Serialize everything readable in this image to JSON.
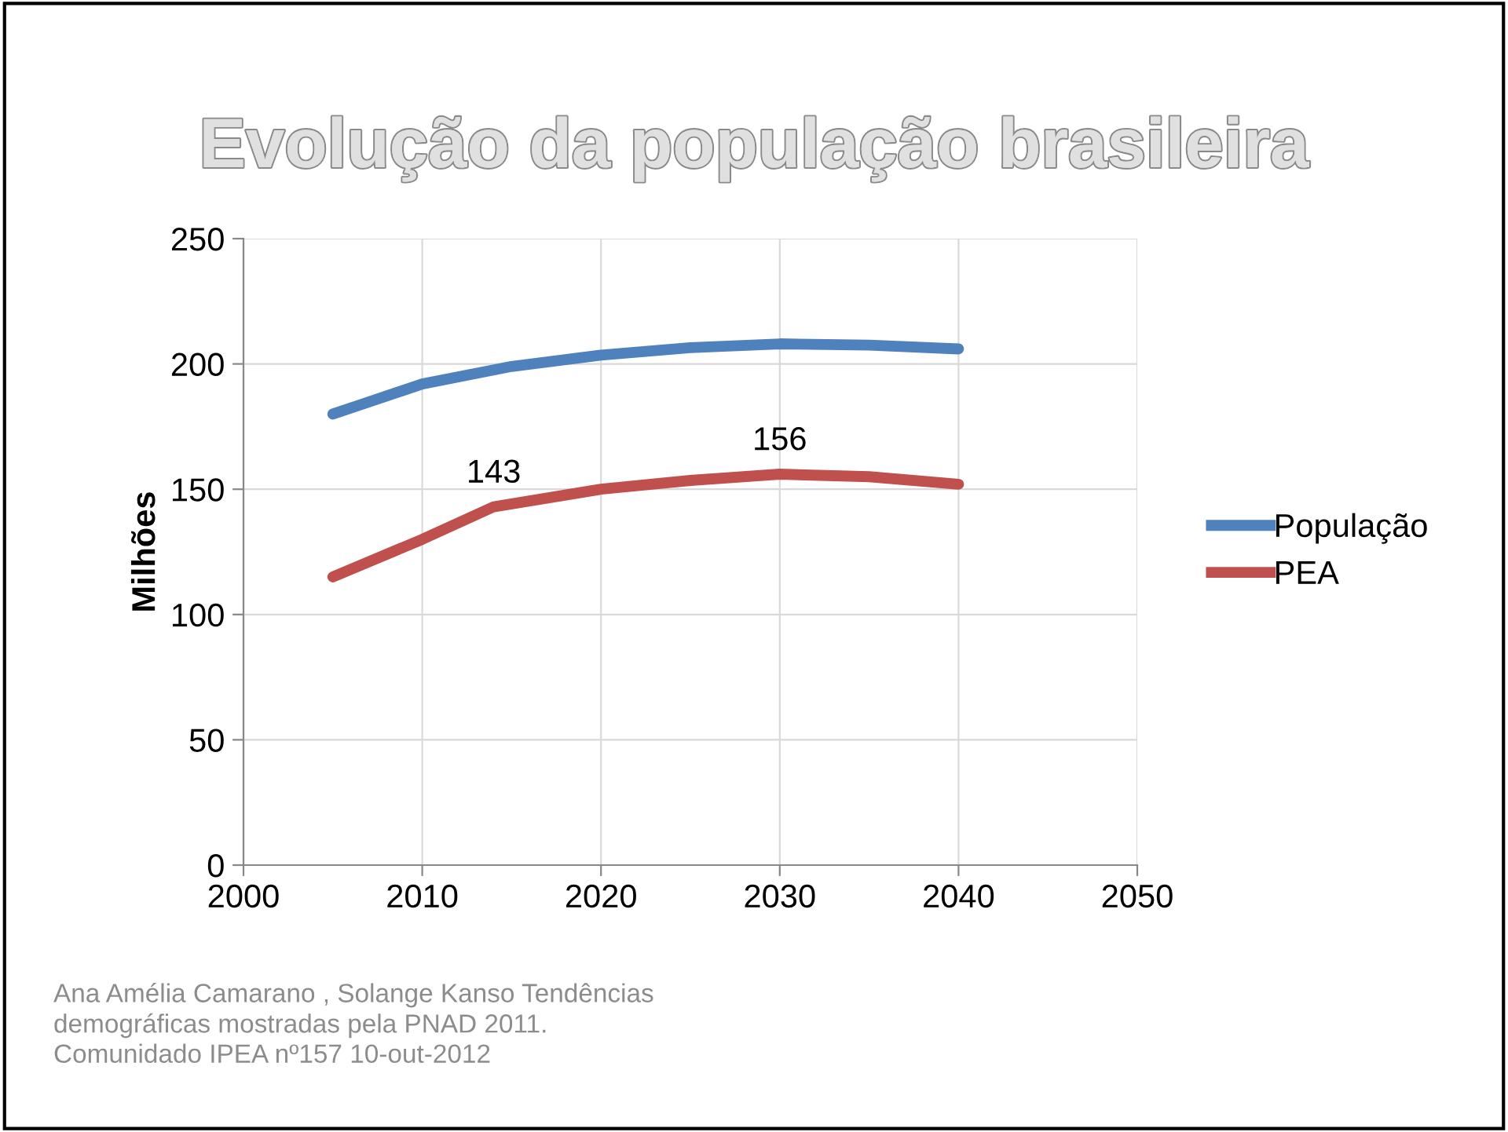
{
  "chart_data": {
    "type": "line",
    "title": "Evolução da população brasileira",
    "ylabel": "Milhões",
    "xlim": [
      2000,
      2050
    ],
    "xticks": [
      2000,
      2010,
      2020,
      2030,
      2040,
      2050
    ],
    "ylim": [
      0,
      250
    ],
    "yticks": [
      0,
      50,
      100,
      150,
      200,
      250
    ],
    "grid": true,
    "legend": "right",
    "marker": "none",
    "line_style": "solid",
    "series": [
      {
        "name": "População",
        "color": "#4f81bd",
        "x": [
          2005,
          2010,
          2015,
          2020,
          2025,
          2030,
          2035,
          2040
        ],
        "values": [
          180,
          192,
          199,
          203.5,
          206.5,
          208,
          207.5,
          206
        ]
      },
      {
        "name": "PEA",
        "color": "#c0504d",
        "x": [
          2005,
          2010,
          2014,
          2020,
          2025,
          2030,
          2035,
          2040
        ],
        "values": [
          115,
          130,
          143,
          150,
          153.5,
          156,
          155,
          152
        ]
      }
    ],
    "annotations": [
      {
        "text": "143",
        "x": 2014,
        "y": 143
      },
      {
        "text": "156",
        "x": 2030,
        "y": 156
      },
      "Ana Amélia Camarano , Solange Kanso Tendências\ndemográficas mostradas pela PNAD 2011.\nComunidado IPEA nº157 10-out-2012"
    ]
  }
}
